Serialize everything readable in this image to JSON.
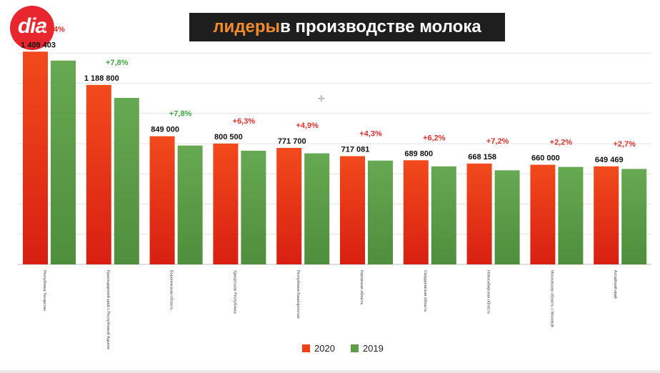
{
  "logo": {
    "text": "dia"
  },
  "title": {
    "accent": "лидеры",
    "rest": " в производстве молока"
  },
  "colors": {
    "series_2020": "#ef3e1a",
    "series_2019": "#5e9e48",
    "up_red": "#e0302a",
    "up_green": "#3ea83e"
  },
  "cursor_icon": "crosshair-icon",
  "chart_data": {
    "type": "bar",
    "title": "лидеры в производстве молока",
    "xlabel": "",
    "ylabel": "",
    "ylim": [
      0,
      1600000
    ],
    "grid": true,
    "legend_position": "bottom",
    "categories": [
      "Республика Татарстан",
      "Краснодарский край с Республикой Адыгея",
      "Воронежская область",
      "Удмуртская Республика",
      "Республика Башкортостан",
      "Кировская область",
      "Свердловская область",
      "Новосибирская область",
      "Московская область с Москвой",
      "Алтайский край"
    ],
    "series": [
      {
        "name": "2020",
        "values": [
          1409403,
          1188800,
          849000,
          800500,
          771700,
          717081,
          689800,
          668158,
          660000,
          649469
        ],
        "labels": [
          "1 409 403",
          "1 188 800",
          "849 000",
          "800 500",
          "771 700",
          "717 081",
          "689 800",
          "668 158",
          "660 000",
          "649 469"
        ]
      },
      {
        "name": "2019",
        "values": [
          1350000,
          1103000,
          787600,
          753100,
          735700,
          687500,
          649500,
          623300,
          645800,
          632400
        ]
      }
    ],
    "growth_labels": [
      "+4,4%",
      "+7,8%",
      "+7,8%",
      "+6,3%",
      "+4,9%",
      "+4,3%",
      "+6,2%",
      "+7,2%",
      "+2,2%",
      "+2,7%"
    ],
    "growth_colors": [
      "red",
      "green",
      "green",
      "red",
      "red",
      "red",
      "red",
      "red",
      "red",
      "red"
    ]
  }
}
